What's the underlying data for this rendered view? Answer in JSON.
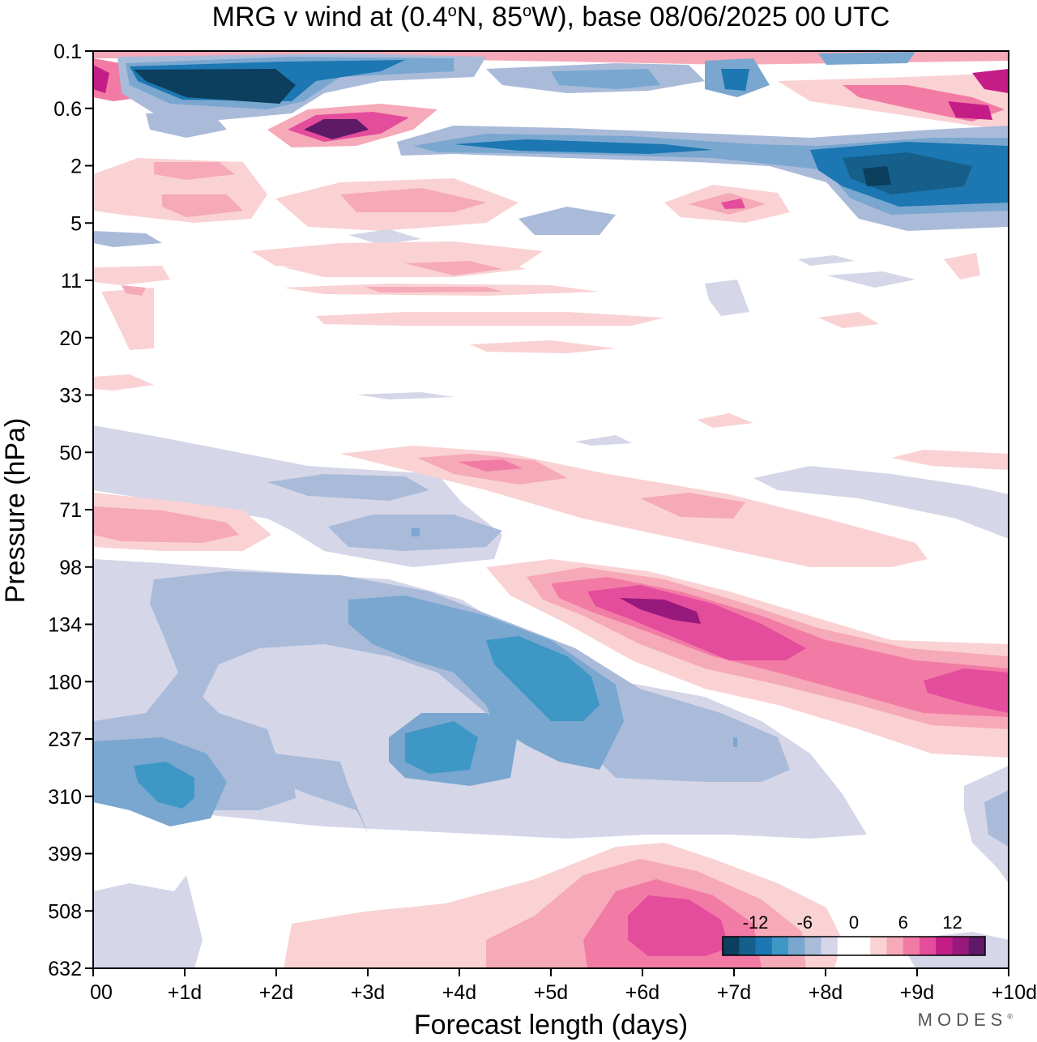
{
  "chart_data": {
    "type": "heatmap",
    "title": "MRG v wind at (0.4°N, 85°W),  base 08/06/2025  00 UTC",
    "title_parts": {
      "prefix": "MRG v wind at (0.4",
      "deg": "o",
      "mid1": "N, 85",
      "mid2": "W),  base 08/06/2025  00 UTC"
    },
    "xlabel": "Forecast length (days)",
    "ylabel": "Pressure (hPa)",
    "x_ticks": [
      "00",
      "+1d",
      "+2d",
      "+3d",
      "+4d",
      "+5d",
      "+6d",
      "+7d",
      "+8d",
      "+9d",
      "+10d"
    ],
    "xlim": [
      0,
      10
    ],
    "y_ticks": [
      "0.1",
      "0.6",
      "2",
      "5",
      "11",
      "20",
      "33",
      "50",
      "71",
      "98",
      "134",
      "180",
      "237",
      "310",
      "399",
      "508",
      "632"
    ],
    "y_scale": "log-pressure",
    "colorbar": {
      "labels": [
        "-12",
        "-6",
        "0",
        "6",
        "12"
      ],
      "colors": [
        "#0c3e5e",
        "#155f8a",
        "#1c77b2",
        "#3f97c6",
        "#79a7cf",
        "#a9bbd9",
        "#d5d6e8",
        "#ffffff",
        "#ffffff",
        "#fad2d4",
        "#f6a9b8",
        "#f27ba5",
        "#e44c9c",
        "#c41d87",
        "#97197b",
        "#5e1a67"
      ]
    },
    "features": [
      {
        "sign": "negative",
        "x": [
          1,
          3.5
        ],
        "p": [
          0.3,
          0.45
        ],
        "peak": -14
      },
      {
        "sign": "positive",
        "x": [
          2.4,
          3.2
        ],
        "p": [
          1.0,
          1.2
        ],
        "peak": 14
      },
      {
        "sign": "negative",
        "x": [
          8.3,
          10
        ],
        "p": [
          1.5,
          4.0
        ],
        "peak": -14
      },
      {
        "sign": "positive",
        "x": [
          5.5,
          10
        ],
        "p": [
          98,
          200
        ],
        "peak": 13
      },
      {
        "sign": "negative",
        "x": [
          2.5,
          6.5
        ],
        "p": [
          120,
          300
        ],
        "peak": -9
      },
      {
        "sign": "negative",
        "x": [
          0,
          1.5
        ],
        "p": [
          250,
          340
        ],
        "peak": -9
      },
      {
        "sign": "positive",
        "x": [
          5.5,
          7.5
        ],
        "p": [
          450,
          632
        ],
        "peak": 10
      },
      {
        "sign": "positive",
        "x": [
          4.5,
          9
        ],
        "p": [
          50,
          90
        ],
        "peak": 5
      }
    ]
  },
  "watermark": "MODES",
  "watermark_mark": "®"
}
